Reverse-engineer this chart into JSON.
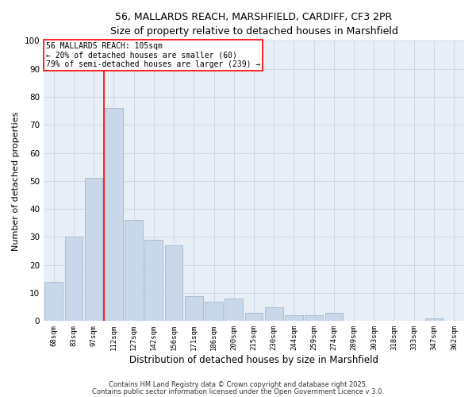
{
  "title_line1": "56, MALLARDS REACH, MARSHFIELD, CARDIFF, CF3 2PR",
  "title_line2": "Size of property relative to detached houses in Marshfield",
  "xlabel": "Distribution of detached houses by size in Marshfield",
  "ylabel": "Number of detached properties",
  "categories": [
    "68sqm",
    "83sqm",
    "97sqm",
    "112sqm",
    "127sqm",
    "142sqm",
    "156sqm",
    "171sqm",
    "186sqm",
    "200sqm",
    "215sqm",
    "230sqm",
    "244sqm",
    "259sqm",
    "274sqm",
    "289sqm",
    "303sqm",
    "318sqm",
    "333sqm",
    "347sqm",
    "362sqm"
  ],
  "values": [
    14,
    30,
    51,
    76,
    36,
    29,
    27,
    9,
    7,
    8,
    3,
    5,
    2,
    2,
    3,
    0,
    0,
    0,
    0,
    1,
    0
  ],
  "bar_color": "#c8d8ea",
  "bar_edge_color": "#a8bdd0",
  "red_line_x": 3.0,
  "annotation_text": "56 MALLARDS REACH: 105sqm\n← 20% of detached houses are smaller (60)\n79% of semi-detached houses are larger (239) →",
  "annotation_box_color": "white",
  "annotation_box_edge": "red",
  "ylim": [
    0,
    100
  ],
  "yticks": [
    0,
    10,
    20,
    30,
    40,
    50,
    60,
    70,
    80,
    90,
    100
  ],
  "grid_color": "#ccd8e8",
  "background_color": "#e8eef6",
  "footer_line1": "Contains HM Land Registry data © Crown copyright and database right 2025.",
  "footer_line2": "Contains public sector information licensed under the Open Government Licence v 3.0."
}
